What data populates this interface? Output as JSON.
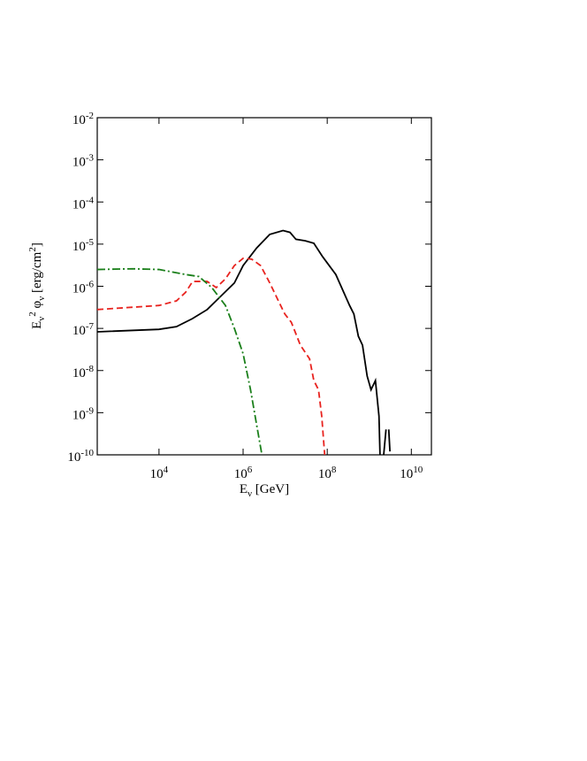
{
  "chart_data": {
    "type": "line",
    "x_label": "E_{ν} [GeV]",
    "y_label": "E_{ν}^{2} φ_{ν} [erg/cm^{2}]",
    "xscale": "log",
    "yscale": "log",
    "xlim": [
      340,
      30000000000.0
    ],
    "ylim": [
      1e-10,
      0.01
    ],
    "xticks": [
      {
        "value": 10000.0,
        "label": "10^{4}"
      },
      {
        "value": 1000000.0,
        "label": "10^{6}"
      },
      {
        "value": 100000000.0,
        "label": "10^{8}"
      },
      {
        "value": 10000000000.0,
        "label": "10^{10}"
      }
    ],
    "yticks": [
      {
        "value": 1e-10,
        "label": "10^{-10}"
      },
      {
        "value": 1e-09,
        "label": "10^{-9}"
      },
      {
        "value": 1e-08,
        "label": "10^{-8}"
      },
      {
        "value": 1e-07,
        "label": "10^{-7}"
      },
      {
        "value": 1e-06,
        "label": "10^{-6}"
      },
      {
        "value": 1e-05,
        "label": "10^{-5}"
      },
      {
        "value": 0.0001,
        "label": "10^{-4}"
      },
      {
        "value": 0.001,
        "label": "10^{-3}"
      },
      {
        "value": 0.01,
        "label": "10^{-2}"
      }
    ],
    "series": [
      {
        "color": "#000000",
        "dash": "solid",
        "x": [
          340,
          10000.0,
          26000.0,
          62000.0,
          140000.0,
          620000.0,
          1000000.0,
          2100000.0,
          4300000.0,
          8900000.0,
          13000000.0,
          18000000.0,
          30000000.0,
          48000000.0,
          78000000.0,
          160000000.0,
          340000000.0,
          430000000.0,
          550000000.0,
          690000000.0,
          890000000.0,
          1100000000.0,
          1400000000.0,
          1700000000.0,
          1800000000.0,
          null,
          2200000000.0,
          2500000000.0,
          null,
          2900000000.0,
          3100000000.0
        ],
        "values": [
          8.3e-08,
          9.5e-08,
          1.1e-07,
          1.7e-07,
          2.8e-07,
          1.2e-06,
          3.1e-06,
          8.1e-06,
          1.7e-05,
          2.1e-05,
          1.9e-05,
          1.3e-05,
          1.2e-05,
          1.05e-05,
          5e-06,
          1.9e-06,
          3.5e-07,
          2.2e-07,
          6.5e-08,
          4e-08,
          7.4e-09,
          3.5e-09,
          5.8e-09,
          8.3e-10,
          1e-10,
          null,
          1e-10,
          4e-10,
          null,
          4e-10,
          1.2e-10
        ]
      },
      {
        "color": "#e8231f",
        "dash": "dashed",
        "x": [
          340,
          10000.0,
          26000.0,
          43000.0,
          63000.0,
          140000.0,
          230000.0,
          380000.0,
          620000.0,
          1000000.0,
          1600000.0,
          2600000.0,
          4300000.0,
          6900000.0,
          9800000.0,
          14000000.0,
          23000000.0,
          38000000.0,
          48000000.0,
          62000000.0,
          74000000.0,
          87000000.0
        ],
        "values": [
          2.8e-07,
          3.5e-07,
          4.5e-07,
          7.2e-07,
          1.3e-06,
          1.3e-06,
          9.3e-07,
          1.5e-06,
          3.1e-06,
          4.6e-06,
          4.4e-06,
          3.1e-06,
          1.2e-06,
          4.5e-07,
          2.2e-07,
          1.4e-07,
          4e-08,
          1.9e-08,
          5.8e-09,
          3.5e-09,
          8.3e-10,
          1e-10
        ]
      },
      {
        "color": "#1a7f1a",
        "dash": "dashdot",
        "x": [
          340,
          2300,
          10000.0,
          43000.0,
          89000.0,
          180000.0,
          380000.0,
          620000.0,
          1000000.0,
          1500000.0,
          2100000.0,
          2800000.0
        ],
        "values": [
          2.5e-06,
          2.6e-06,
          2.5e-06,
          1.9e-06,
          1.7e-06,
          9.3e-07,
          3.5e-07,
          1e-07,
          2.5e-08,
          3.5e-09,
          5.1e-10,
          1e-10
        ]
      }
    ]
  }
}
